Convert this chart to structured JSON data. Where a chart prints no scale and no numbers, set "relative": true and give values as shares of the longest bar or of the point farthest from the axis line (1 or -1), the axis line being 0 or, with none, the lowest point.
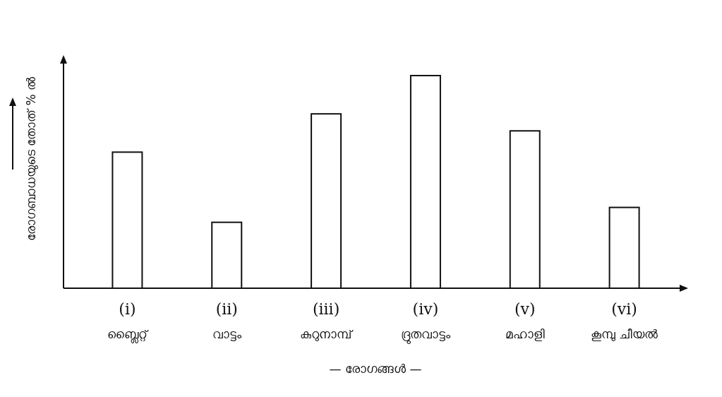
{
  "chart_data": {
    "type": "bar",
    "relative": true,
    "xlabel": "— രോഗങ്ങൾ —",
    "ylabel": "രോഗബാധയുടെ തോത് % ൽ",
    "categories": [
      "(i)\nബ്ലൈറ്റ്",
      "(ii)\nവാട്ടം",
      "(iii)\nകുറുനാമ്പ്",
      "(iv)\nദ്രുതവാട്ടം",
      "(v)\nമഹാളി",
      "(vi)\nകൂമ്പു ചീയൽ"
    ],
    "values": [
      0.64,
      0.31,
      0.82,
      1,
      0.74,
      0.38
    ],
    "color": "#ffffff"
  }
}
